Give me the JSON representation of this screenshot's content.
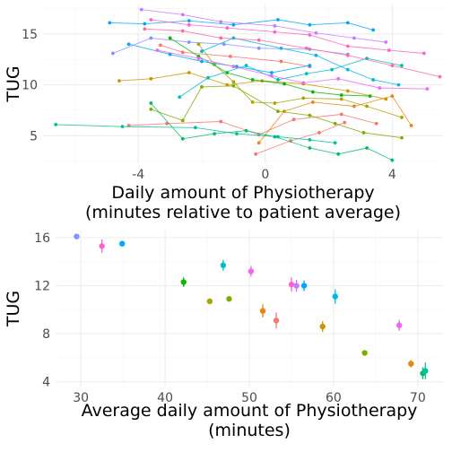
{
  "chart_data": [
    {
      "type": "line",
      "xlabel": "Daily amount of Physiotherapy\n(minutes relative to patient average)",
      "ylabel": "TUG",
      "xlim": [
        -7,
        5.6
      ],
      "ylim": [
        2.3,
        17.9
      ],
      "x_ticks": [
        "-4",
        "0",
        "4"
      ],
      "x_tick_values": [
        -4,
        0,
        4
      ],
      "y_ticks": [
        "5",
        "10",
        "15"
      ],
      "y_tick_values": [
        5,
        10,
        15
      ],
      "grid": "on",
      "series": [
        {
          "color": "#F8766D",
          "points": [
            [
              -3.3,
              13.9
            ],
            [
              -2.6,
              13.2
            ],
            [
              -1.1,
              12.8
            ],
            [
              0.5,
              12.3
            ],
            [
              1.4,
              11.8
            ]
          ]
        },
        {
          "color": "#F8766D",
          "points": [
            [
              -4.3,
              6.0
            ],
            [
              -3.1,
              6.2
            ],
            [
              -1.4,
              6.4
            ],
            [
              -0.2,
              5.1
            ],
            [
              0.9,
              6.6
            ],
            [
              2.4,
              7.1
            ],
            [
              3.5,
              6.2
            ]
          ]
        },
        {
          "color": "#F8766D",
          "points": [
            [
              -0.3,
              3.2
            ],
            [
              0.8,
              4.5
            ],
            [
              1.7,
              5.3
            ],
            [
              2.5,
              6.3
            ]
          ]
        },
        {
          "color": "#E68613",
          "points": [
            [
              -0.2,
              4.3
            ],
            [
              0.6,
              7.4
            ],
            [
              1.5,
              8.3
            ],
            [
              2.8,
              7.9
            ],
            [
              4.0,
              8.9
            ],
            [
              4.6,
              6.0
            ]
          ]
        },
        {
          "color": "#CD9600",
          "points": [
            [
              -4.6,
              10.4
            ],
            [
              -3.6,
              10.6
            ],
            [
              -2.4,
              11.2
            ],
            [
              -1.2,
              10.0
            ],
            [
              -0.1,
              10.4
            ],
            [
              1.2,
              10.1
            ],
            [
              2.6,
              9.4
            ],
            [
              3.8,
              8.6
            ]
          ]
        },
        {
          "color": "#ABA300",
          "points": [
            [
              -2.1,
              14.0
            ],
            [
              -1.6,
              12.0
            ],
            [
              -1.0,
              10.3
            ],
            [
              -0.4,
              8.3
            ],
            [
              0.3,
              8.2
            ],
            [
              1.2,
              8.7
            ],
            [
              2.4,
              8.6
            ],
            [
              3.2,
              7.9
            ],
            [
              4.3,
              6.8
            ]
          ]
        },
        {
          "color": "#7CAE00",
          "points": [
            [
              -3.6,
              7.6
            ],
            [
              -2.6,
              6.5
            ],
            [
              -2.0,
              9.8
            ],
            [
              -1.0,
              9.9
            ],
            [
              0.4,
              7.4
            ],
            [
              1.4,
              7.0
            ],
            [
              2.2,
              6.2
            ],
            [
              3.1,
              5.3
            ],
            [
              4.3,
              4.8
            ]
          ]
        },
        {
          "color": "#0CB702",
          "points": [
            [
              -3.0,
              14.6
            ],
            [
              -2.1,
              12.8
            ],
            [
              -1.2,
              11.2
            ],
            [
              -0.4,
              10.5
            ],
            [
              0.6,
              10.1
            ],
            [
              1.5,
              9.3
            ],
            [
              2.4,
              9.0
            ],
            [
              3.3,
              8.9
            ]
          ]
        },
        {
          "color": "#00BE67",
          "points": [
            [
              -3.6,
              8.2
            ],
            [
              -2.6,
              4.7
            ],
            [
              -1.6,
              5.2
            ],
            [
              -0.6,
              5.5
            ],
            [
              0.3,
              4.9
            ],
            [
              1.4,
              3.8
            ],
            [
              2.3,
              3.2
            ],
            [
              3.2,
              3.8
            ],
            [
              4.0,
              2.6
            ]
          ]
        },
        {
          "color": "#00C19A",
          "points": [
            [
              -6.6,
              6.1
            ],
            [
              -4.5,
              5.9
            ],
            [
              -2.2,
              5.8
            ],
            [
              -0.9,
              5.2
            ],
            [
              0.4,
              4.9
            ],
            [
              1.4,
              4.6
            ],
            [
              2.2,
              4.3
            ]
          ]
        },
        {
          "color": "#00BFC4",
          "points": [
            [
              -2.7,
              8.8
            ],
            [
              -1.8,
              10.7
            ],
            [
              -0.6,
              11.9
            ],
            [
              0.4,
              10.5
            ],
            [
              1.3,
              11.1
            ],
            [
              2.1,
              11.5
            ],
            [
              3.2,
              12.6
            ],
            [
              4.3,
              11.9
            ]
          ]
        },
        {
          "color": "#00B8E7",
          "points": [
            [
              -2.0,
              13.3
            ],
            [
              -1.0,
              14.6
            ],
            [
              0.5,
              13.6
            ],
            [
              1.6,
              12.9
            ],
            [
              2.6,
              11.5
            ],
            [
              3.4,
              10.5
            ],
            [
              4.2,
              10.0
            ]
          ]
        },
        {
          "color": "#00A9FF",
          "points": [
            [
              -4.9,
              16.1
            ],
            [
              -3.8,
              16.0
            ],
            [
              -2.4,
              16.3
            ],
            [
              -1.0,
              15.9
            ],
            [
              0.4,
              16.4
            ],
            [
              1.4,
              15.9
            ],
            [
              2.6,
              16.1
            ],
            [
              3.4,
              15.4
            ]
          ]
        },
        {
          "color": "#00A9FF",
          "points": [
            [
              -4.3,
              14.0
            ],
            [
              -3.0,
              13.0
            ],
            [
              -2.0,
              12.3
            ],
            [
              -0.9,
              11.8
            ],
            [
              0.2,
              11.2
            ],
            [
              1.4,
              11.9
            ]
          ]
        },
        {
          "color": "#8494FF",
          "points": [
            [
              -4.8,
              13.1
            ],
            [
              -3.6,
              14.6
            ],
            [
              -2.4,
              14.2
            ],
            [
              -1.3,
              14.0
            ],
            [
              -0.2,
              13.6
            ],
            [
              1.4,
              13.5
            ],
            [
              2.6,
              13.0
            ]
          ]
        },
        {
          "color": "#C77CFF",
          "points": [
            [
              -3.9,
              17.4
            ],
            [
              -2.6,
              16.9
            ],
            [
              -1.4,
              16.2
            ],
            [
              0.3,
              15.8
            ],
            [
              1.6,
              15.1
            ],
            [
              2.8,
              14.6
            ],
            [
              3.8,
              14.2
            ]
          ]
        },
        {
          "color": "#ED68ED",
          "points": [
            [
              -3.4,
              13.4
            ],
            [
              -2.1,
              12.6
            ],
            [
              -1.0,
              11.8
            ],
            [
              0.2,
              10.9
            ],
            [
              1.2,
              10.2
            ],
            [
              2.3,
              10.6
            ],
            [
              3.6,
              9.7
            ],
            [
              5.1,
              9.6
            ]
          ]
        },
        {
          "color": "#FF61CC",
          "points": [
            [
              -3.6,
              16.4
            ],
            [
              -2.4,
              15.9
            ],
            [
              -1.2,
              15.6
            ],
            [
              0.3,
              15.2
            ],
            [
              1.4,
              14.9
            ],
            [
              2.6,
              13.8
            ],
            [
              3.9,
              13.4
            ],
            [
              5.0,
              13.1
            ]
          ]
        },
        {
          "color": "#FF68A1",
          "points": [
            [
              -3.8,
              15.5
            ],
            [
              -2.6,
              15.3
            ],
            [
              -1.4,
              14.6
            ],
            [
              -0.2,
              14.4
            ],
            [
              1.3,
              13.6
            ],
            [
              2.6,
              12.9
            ],
            [
              4.0,
              11.9
            ],
            [
              5.5,
              10.8
            ]
          ]
        }
      ]
    },
    {
      "type": "scatter",
      "xlabel": "Average daily amount of Physiotherapy\n(minutes)",
      "ylabel": "TUG",
      "xlim": [
        27,
        73
      ],
      "ylim": [
        3.6,
        16.6
      ],
      "x_ticks": [
        "30",
        "40",
        "50",
        "60",
        "70"
      ],
      "x_tick_values": [
        30,
        40,
        50,
        60,
        70
      ],
      "y_ticks": [
        "4",
        "8",
        "12",
        "16"
      ],
      "y_tick_values": [
        4,
        8,
        12,
        16
      ],
      "grid": "on",
      "points": [
        {
          "x": 29.5,
          "y": 16.1,
          "err": 0.2,
          "color": "#8494FF"
        },
        {
          "x": 32.5,
          "y": 15.3,
          "err": 0.55,
          "color": "#FF61CC"
        },
        {
          "x": 34.9,
          "y": 15.5,
          "err": 0.2,
          "color": "#00A9FF"
        },
        {
          "x": 42.2,
          "y": 12.3,
          "err": 0.4,
          "color": "#0CB702"
        },
        {
          "x": 45.3,
          "y": 10.7,
          "err": 0.15,
          "color": "#ABA300"
        },
        {
          "x": 46.9,
          "y": 13.7,
          "err": 0.45,
          "color": "#00BFC4"
        },
        {
          "x": 47.6,
          "y": 10.9,
          "err": 0.2,
          "color": "#7CAE00"
        },
        {
          "x": 50.2,
          "y": 13.2,
          "err": 0.45,
          "color": "#ED68ED"
        },
        {
          "x": 51.6,
          "y": 9.9,
          "err": 0.55,
          "color": "#E68613"
        },
        {
          "x": 53.2,
          "y": 9.1,
          "err": 0.65,
          "color": "#F8766D"
        },
        {
          "x": 55.0,
          "y": 12.1,
          "err": 0.6,
          "color": "#FF61CC"
        },
        {
          "x": 55.6,
          "y": 12.0,
          "err": 0.5,
          "color": "#C77CFF"
        },
        {
          "x": 56.5,
          "y": 12.0,
          "err": 0.45,
          "color": "#00A9FF"
        },
        {
          "x": 60.2,
          "y": 11.1,
          "err": 0.6,
          "color": "#00B8E7"
        },
        {
          "x": 58.7,
          "y": 8.6,
          "err": 0.45,
          "color": "#CD9600"
        },
        {
          "x": 63.7,
          "y": 6.4,
          "err": 0.15,
          "color": "#7CAE00"
        },
        {
          "x": 67.8,
          "y": 8.7,
          "err": 0.45,
          "color": "#ED68ED"
        },
        {
          "x": 69.2,
          "y": 5.5,
          "err": 0.3,
          "color": "#E68613"
        },
        {
          "x": 70.6,
          "y": 4.7,
          "err": 0.5,
          "color": "#00BE67"
        },
        {
          "x": 70.9,
          "y": 4.9,
          "err": 0.7,
          "color": "#00C19A"
        }
      ]
    }
  ]
}
